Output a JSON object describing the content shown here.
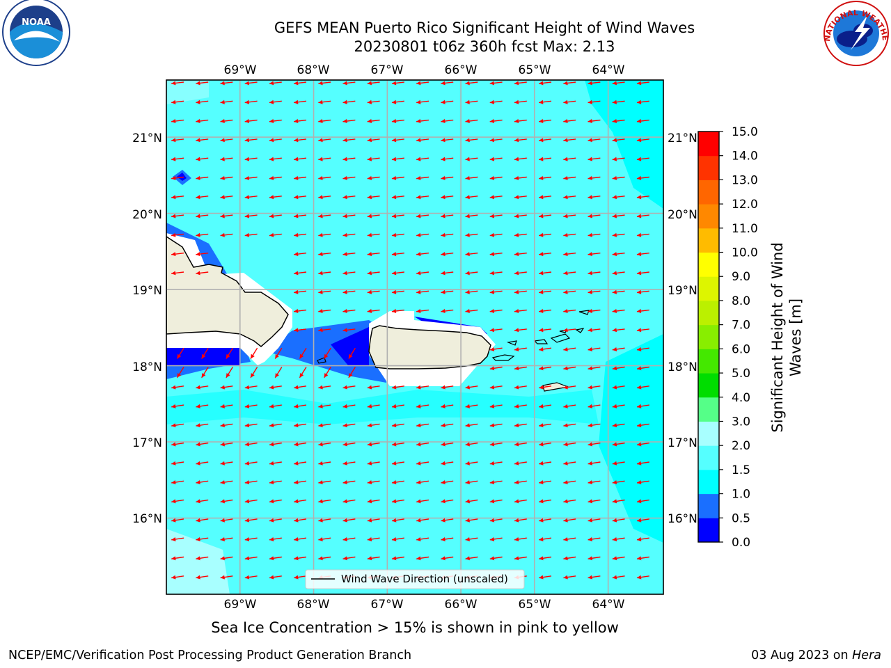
{
  "title": {
    "line1": "GEFS MEAN Puerto Rico Significant Height of Wind Waves",
    "line2": "20230801 t06z 360h fcst   Max: 2.13"
  },
  "logos": {
    "noaa_text": "NOAA",
    "nws_text": "NATIONAL WEATHER SERVICE"
  },
  "map": {
    "region": "Puerto Rico",
    "lon_range": [
      -70.0,
      -63.25
    ],
    "lat_range": [
      15.0,
      21.75
    ],
    "lon_ticks": [
      "69°W",
      "68°W",
      "67°W",
      "66°W",
      "65°W",
      "64°W"
    ],
    "lat_ticks": [
      "21°N",
      "20°N",
      "19°N",
      "18°N",
      "17°N",
      "16°N"
    ],
    "grid": true,
    "arrow_color": "#ff0000",
    "arrow_direction": "west",
    "legend_label": "Wind Wave Direction (unscaled)"
  },
  "colorbar": {
    "label": "Significant Height of Wind Waves [m]",
    "label_line1": "Significant Height of Wind",
    "label_line2": "Waves [m]",
    "ticks": [
      "15.0",
      "14.0",
      "13.0",
      "12.0",
      "11.0",
      "10.0",
      "9.0",
      "8.0",
      "7.0",
      "6.0",
      "5.0",
      "4.0",
      "3.0",
      "2.0",
      "1.5",
      "1.0",
      "0.5",
      "0.0"
    ],
    "colors": [
      "#0000ff",
      "#1a6fff",
      "#00ffff",
      "#55ffff",
      "#a8ffff",
      "#55ff88",
      "#00dd00",
      "#44e800",
      "#88ee00",
      "#bbf000",
      "#ddf500",
      "#ffff00",
      "#ffbb00",
      "#ff8800",
      "#ff6600",
      "#ff3300",
      "#ff0000"
    ]
  },
  "caption": "Sea Ice Concentration > 15% is shown in pink to yellow",
  "footer": {
    "left": "NCEP/EMC/Verification Post Processing Product Generation Branch",
    "right_prefix": "03 Aug 2023 on ",
    "right_host": "Hera"
  }
}
